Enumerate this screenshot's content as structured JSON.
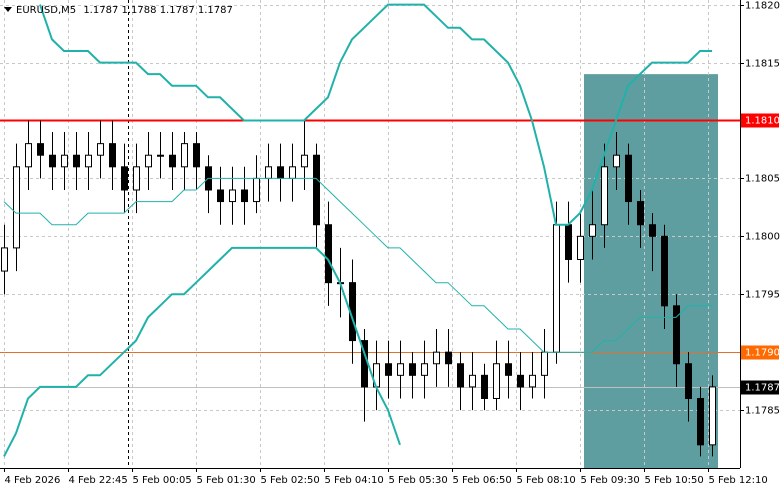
{
  "chart_data": {
    "type": "candlestick",
    "symbol": "EURUSD,M5",
    "ohlc": [
      1.1787,
      1.1788,
      1.1787,
      1.1787
    ],
    "xlim": [
      -1,
      184
    ],
    "ylim": [
      1.178,
      1.18204
    ],
    "grid": true,
    "xticks": [
      {
        "value": 0,
        "label": "4 Feb 2026"
      },
      {
        "value": 16,
        "label": "4 Feb 22:45"
      },
      {
        "value": 32,
        "label": "5 Feb 00:05"
      },
      {
        "value": 48,
        "label": "5 Feb 01:30"
      },
      {
        "value": 64,
        "label": "5 Feb 02:50"
      },
      {
        "value": 80,
        "label": "5 Feb 04:10"
      },
      {
        "value": 96,
        "label": "5 Feb 05:30"
      },
      {
        "value": 112,
        "label": "5 Feb 06:50"
      },
      {
        "value": 128,
        "label": "5 Feb 08:10"
      },
      {
        "value": 144,
        "label": "5 Feb 09:30"
      },
      {
        "value": 160,
        "label": "5 Feb 10:50"
      },
      {
        "value": 176,
        "label": "5 Feb 12:10"
      }
    ],
    "yticks": [
      1.1785,
      {
        "value": 1.179,
        "label": "1.1790"
      },
      1.1795,
      {
        "value": 1.18,
        "label": "1.1800"
      },
      1.1805,
      {
        "value": 1.181,
        "label": "1.1810"
      },
      1.1815,
      {
        "value": 1.182,
        "label": "1.1820"
      }
    ],
    "x": [
      0,
      3,
      6,
      9,
      12,
      15,
      18,
      21,
      24,
      27,
      30,
      33,
      36,
      39,
      42,
      45,
      48,
      51,
      54,
      57,
      60,
      63,
      66,
      69,
      72,
      75,
      78,
      81,
      84,
      87,
      90,
      93,
      96,
      99,
      102,
      105,
      108,
      111,
      114,
      117,
      120,
      123,
      126,
      129,
      132,
      135,
      138,
      141,
      144,
      147,
      150,
      153,
      156,
      159,
      162,
      165,
      168,
      171,
      174,
      177
    ],
    "open": [
      1.1797,
      1.1799,
      1.1806,
      1.1808,
      1.1807,
      1.1806,
      1.1807,
      1.1806,
      1.1807,
      1.1808,
      1.1806,
      1.1804,
      1.1806,
      1.1807,
      1.1807,
      1.1806,
      1.1808,
      1.1806,
      1.1804,
      1.1803,
      1.1804,
      1.1803,
      1.1805,
      1.1806,
      1.1805,
      1.1806,
      1.1807,
      1.1801,
      1.1796,
      1.1796,
      1.1791,
      1.1787,
      1.1789,
      1.1788,
      1.1789,
      1.1788,
      1.1789,
      1.179,
      1.1789,
      1.1787,
      1.1788,
      1.1786,
      1.1789,
      1.1788,
      1.1787,
      1.1788,
      1.179,
      1.1801,
      1.1798,
      1.18,
      1.1801,
      1.1806,
      1.1807,
      1.1803,
      1.1801,
      1.18,
      1.1794,
      1.1789,
      1.1786,
      1.1782
    ],
    "high": [
      1.1801,
      1.1808,
      1.181,
      1.181,
      1.1809,
      1.1809,
      1.1809,
      1.1809,
      1.181,
      1.181,
      1.1808,
      1.1808,
      1.1809,
      1.1809,
      1.1809,
      1.1809,
      1.1809,
      1.1807,
      1.1806,
      1.1806,
      1.1806,
      1.1807,
      1.1808,
      1.1808,
      1.1808,
      1.181,
      1.1808,
      1.1803,
      1.1799,
      1.1798,
      1.1792,
      1.1791,
      1.1791,
      1.1791,
      1.179,
      1.1791,
      1.1792,
      1.1792,
      1.179,
      1.179,
      1.1789,
      1.1791,
      1.1791,
      1.179,
      1.179,
      1.1792,
      1.1803,
      1.1803,
      1.1802,
      1.1804,
      1.1808,
      1.1809,
      1.1808,
      1.1804,
      1.1802,
      1.1801,
      1.1795,
      1.179,
      1.1787,
      1.1788
    ],
    "low": [
      1.1795,
      1.1797,
      1.1804,
      1.1805,
      1.1804,
      1.1804,
      1.1804,
      1.1804,
      1.1805,
      1.1804,
      1.1802,
      1.1802,
      1.1804,
      1.1805,
      1.1804,
      1.1804,
      1.1804,
      1.1802,
      1.1801,
      1.1801,
      1.1801,
      1.1802,
      1.1803,
      1.1803,
      1.1803,
      1.1804,
      1.1799,
      1.1794,
      1.1793,
      1.1789,
      1.1784,
      1.1785,
      1.1786,
      1.1786,
      1.1786,
      1.1786,
      1.1787,
      1.1787,
      1.1785,
      1.1785,
      1.1785,
      1.1785,
      1.1786,
      1.1785,
      1.1786,
      1.1786,
      1.1789,
      1.1796,
      1.1796,
      1.1798,
      1.1799,
      1.1804,
      1.1801,
      1.1799,
      1.1797,
      1.1792,
      1.1787,
      1.1784,
      1.1781,
      1.1781
    ],
    "close": [
      1.1799,
      1.1806,
      1.1808,
      1.1807,
      1.1806,
      1.1807,
      1.1806,
      1.1807,
      1.1808,
      1.1806,
      1.1804,
      1.1806,
      1.1807,
      1.1807,
      1.1806,
      1.1808,
      1.1806,
      1.1804,
      1.1803,
      1.1804,
      1.1803,
      1.1805,
      1.1806,
      1.1805,
      1.1806,
      1.1807,
      1.1801,
      1.1796,
      1.1796,
      1.1791,
      1.1787,
      1.1789,
      1.1788,
      1.1789,
      1.1788,
      1.1789,
      1.179,
      1.1789,
      1.1787,
      1.1788,
      1.1786,
      1.1789,
      1.1788,
      1.1787,
      1.1788,
      1.179,
      1.1801,
      1.1798,
      1.18,
      1.1801,
      1.1806,
      1.1807,
      1.1803,
      1.1801,
      1.18,
      1.1794,
      1.1789,
      1.1786,
      1.1782,
      1.1787
    ],
    "indicators": [
      {
        "color": "#20b2aa",
        "values": [
          null,
          null,
          null,
          1.182,
          1.1817,
          1.1816,
          1.1816,
          1.1816,
          1.1815,
          1.1815,
          1.1815,
          1.1815,
          1.1814,
          1.1814,
          1.1813,
          1.1813,
          1.1813,
          1.1812,
          1.1812,
          1.1811,
          1.181,
          1.181,
          1.181,
          1.181,
          1.181,
          1.181,
          1.1811,
          1.1812,
          1.1815,
          1.1817,
          1.1818,
          1.1819,
          1.182,
          1.182,
          1.182,
          1.182,
          1.1819,
          1.1818,
          1.1818,
          1.1817,
          1.1817,
          1.1816,
          1.1815,
          1.1813,
          1.181,
          1.1806,
          1.1801,
          1.1801,
          1.1802,
          1.1804,
          1.1807,
          1.181,
          1.1813,
          1.1814,
          1.1815,
          1.1815,
          1.1815,
          1.1815,
          1.1816,
          1.1816
        ]
      },
      {
        "color": "#20b2aa",
        "values": [
          1.1803,
          1.1802,
          1.1802,
          1.1802,
          1.1801,
          1.1801,
          1.1801,
          1.1802,
          1.1802,
          1.1802,
          1.1802,
          1.1803,
          1.1803,
          1.1803,
          1.1803,
          1.1804,
          1.1804,
          1.1805,
          1.1805,
          1.1805,
          1.1805,
          1.1805,
          1.1805,
          1.1805,
          1.1805,
          1.1805,
          1.1805,
          1.1804,
          1.1803,
          1.1802,
          1.1801,
          1.18,
          1.1799,
          1.1799,
          1.1798,
          1.1797,
          1.1796,
          1.1796,
          1.1795,
          1.1794,
          1.1794,
          1.1793,
          1.1792,
          1.1792,
          1.1791,
          1.179,
          1.179,
          1.179,
          1.179,
          1.179,
          1.1791,
          1.1791,
          1.1792,
          1.1793,
          1.1793,
          1.1793,
          1.1793,
          1.1794,
          1.1794,
          1.1794
        ]
      },
      {
        "color": "#20b2aa",
        "values": [
          1.1781,
          1.1783,
          1.1786,
          1.1787,
          1.1787,
          1.1787,
          1.1787,
          1.1788,
          1.1788,
          1.1789,
          1.179,
          1.1791,
          1.1793,
          1.1794,
          1.1795,
          1.1795,
          1.1796,
          1.1797,
          1.1798,
          1.1799,
          1.1799,
          1.1799,
          1.1799,
          1.1799,
          1.1799,
          1.1799,
          1.1799,
          1.1798,
          1.1796,
          1.1793,
          1.179,
          1.1787,
          1.1785,
          1.1782,
          null,
          null,
          null,
          null,
          null,
          null,
          null,
          null,
          null,
          null,
          null,
          null,
          null,
          null,
          null,
          null,
          null,
          null,
          null,
          null,
          null,
          null,
          null,
          null,
          null,
          null
        ]
      }
    ],
    "levels": [
      {
        "value": 1.181,
        "label": "1.1810",
        "color": "#ff0000",
        "label_color": "#ff0000"
      },
      {
        "value": 1.179,
        "label": "1.1790",
        "color": "#e0702a",
        "label_color": "#ff6a00"
      },
      {
        "value": 1.1787,
        "label": "1.1787",
        "color": "#c0c0c0",
        "label_color": "#000000"
      }
    ],
    "zone": {
      "x": [
        145,
        178.5
      ],
      "top": 1.1814,
      "color": "#5f9ea0"
    },
    "vline_x": 31
  }
}
